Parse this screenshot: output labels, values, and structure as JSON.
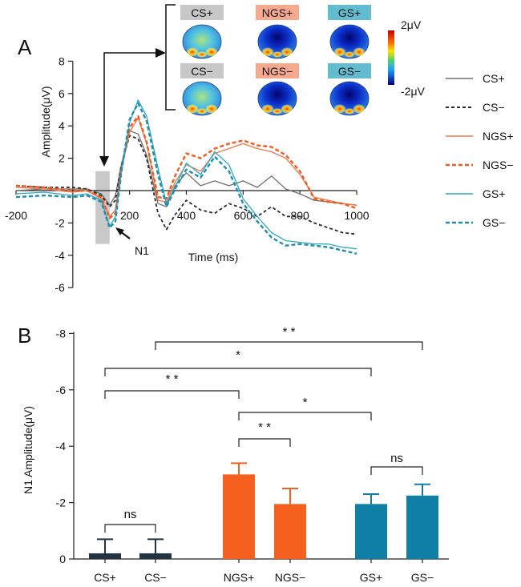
{
  "panel_a": {
    "label": "A",
    "topo_labels_top": [
      "CS+",
      "NGS+",
      "GS+"
    ],
    "topo_labels_bottom": [
      "CS−",
      "NGS−",
      "GS−"
    ],
    "topo_label_colors": [
      "#c7c7c7",
      "#f6a98e",
      "#62bccf"
    ],
    "colorbar_max": "2μV",
    "colorbar_min": "-2μV",
    "n1_label": "N1",
    "colors": {
      "cs": "#6e6e6e",
      "cs_neg": "#2a2a2a",
      "ngs": "#f0784c",
      "ngs_neg": "#f05a1e",
      "gs": "#2fa9be",
      "gs_neg": "#1b8fb3"
    }
  },
  "panel_b": {
    "label": "B",
    "bar_colors": {
      "cs": "#23333f",
      "ngs": "#f5601f",
      "gs": "#0f7fa6"
    },
    "comparisons": [
      {
        "from": "CS+",
        "to": "CS−",
        "label": "ns"
      },
      {
        "from": "NGS+",
        "to": "NGS−",
        "label": "* *"
      },
      {
        "from": "GS+",
        "to": "GS−",
        "label": "ns"
      },
      {
        "from": "NGS+",
        "to": "GS+",
        "label": "*"
      },
      {
        "from": "CS+",
        "to": "NGS+",
        "label": "* *"
      },
      {
        "from": "CS+",
        "to": "GS+",
        "label": "*"
      },
      {
        "from": "CS−",
        "to": "GS−",
        "label": "* *"
      }
    ]
  },
  "chart_data": [
    {
      "type": "line",
      "xlabel": "Time (ms)",
      "ylabel": "Amplitude(μV)",
      "xlim": [
        -200,
        1000
      ],
      "ylim": [
        -6,
        8
      ],
      "xticks": [
        -200,
        200,
        400,
        600,
        800,
        1000
      ],
      "yticks": [
        -6,
        -4,
        -2,
        2,
        4,
        6,
        8
      ],
      "legend_position": "right",
      "x": [
        -200,
        -100,
        0,
        50,
        100,
        130,
        150,
        170,
        200,
        230,
        260,
        300,
        330,
        360,
        400,
        450,
        500,
        550,
        600,
        650,
        700,
        750,
        800,
        850,
        900,
        950,
        1000
      ],
      "series": [
        {
          "name": "CS+",
          "values": [
            0,
            0.1,
            0.1,
            0.1,
            -0.2,
            -0.9,
            -0.3,
            1.5,
            3.7,
            3.5,
            2.2,
            -0.8,
            -1.0,
            0.3,
            1.1,
            0.3,
            0.6,
            0.3,
            0.6,
            0.2,
            0.9,
            0.1,
            -0.2,
            -0.6,
            -0.7,
            -0.8,
            -0.9
          ]
        },
        {
          "name": "CS−",
          "values": [
            0.3,
            0.2,
            0.2,
            0.1,
            -0.3,
            -1.0,
            -0.6,
            1.5,
            3.4,
            3.2,
            2.0,
            -1.4,
            -2.4,
            -1.5,
            -0.6,
            -1.2,
            -1.4,
            -0.8,
            -1.1,
            -1.6,
            -1.0,
            -1.6,
            -1.6,
            -2.0,
            -2.3,
            -2.6,
            -2.7
          ]
        },
        {
          "name": "NGS+",
          "values": [
            0.2,
            0.1,
            -0.1,
            0,
            -0.5,
            -1.6,
            -1.2,
            1.2,
            3.6,
            4.5,
            2.9,
            -0.6,
            -0.7,
            0.5,
            1.6,
            1.2,
            2.3,
            2.6,
            2.9,
            2.6,
            2.4,
            2.0,
            1.0,
            -0.4,
            -0.6,
            -0.8,
            -0.9
          ]
        },
        {
          "name": "NGS−",
          "values": [
            0.3,
            0.2,
            0,
            0,
            -0.4,
            -1.7,
            -1.4,
            1.2,
            3.9,
            4.6,
            3.0,
            -0.4,
            -0.5,
            0.9,
            2.3,
            2.0,
            2.6,
            2.9,
            3.1,
            2.8,
            2.7,
            2.2,
            1.2,
            -0.5,
            -0.7,
            -0.8,
            -1.1
          ]
        },
        {
          "name": "GS+",
          "values": [
            -0.2,
            -0.1,
            -0.3,
            -0.2,
            -0.6,
            -2.2,
            -1.6,
            1.0,
            4.2,
            5.6,
            4.6,
            1.4,
            -0.8,
            0.2,
            1.7,
            1.0,
            2.4,
            1.6,
            -0.5,
            -1.6,
            -2.6,
            -3.1,
            -3.2,
            -3.3,
            -3.3,
            -3.5,
            -3.6
          ]
        },
        {
          "name": "GS−",
          "values": [
            -0.4,
            -0.3,
            -0.4,
            -0.3,
            -0.7,
            -2.3,
            -1.9,
            1.0,
            4.4,
            5.4,
            4.3,
            1.0,
            -1.0,
            0.1,
            1.3,
            0.8,
            2.1,
            1.2,
            -0.8,
            -1.9,
            -2.9,
            -3.4,
            -3.3,
            -3.4,
            -3.5,
            -3.7,
            -3.9
          ]
        }
      ]
    },
    {
      "type": "bar",
      "ylabel": "N1 Amplitude(μV)",
      "ylim": [
        0,
        -8
      ],
      "yticks": [
        0,
        -2,
        -4,
        -6,
        -8
      ],
      "yticklabels": [
        "0",
        "-2",
        "-4",
        "-6",
        "-8"
      ],
      "categories": [
        "CS+",
        "CS−",
        "NGS+",
        "NGS−",
        "GS+",
        "GS−"
      ],
      "values": [
        -0.2,
        -0.2,
        -3.0,
        -1.95,
        -1.95,
        -2.25
      ],
      "errors": [
        0.5,
        0.5,
        0.4,
        0.55,
        0.35,
        0.4
      ]
    }
  ]
}
